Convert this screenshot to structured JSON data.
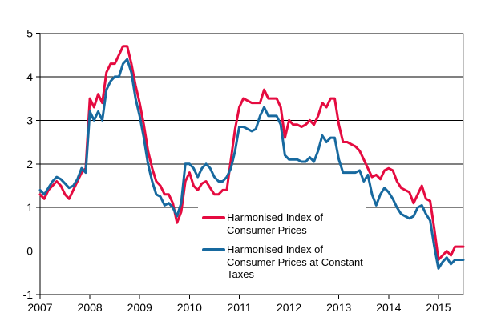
{
  "chart_data": {
    "type": "line",
    "title": "",
    "frequency": "monthly",
    "x_start": "2007-01",
    "x_end": "2015-07",
    "x_tick_labels": [
      "2007",
      "2008",
      "2009",
      "2010",
      "2011",
      "2012",
      "2013",
      "2014",
      "2015"
    ],
    "y_ticks": [
      -1,
      0,
      1,
      2,
      3,
      4,
      5
    ],
    "ylim": [
      -1,
      5
    ],
    "grid": "horizontal",
    "legend_position": "inside-bottom-center",
    "axis_color": "#000000",
    "border_color": "#808080",
    "series": [
      {
        "name": "Harmonised Index of Consumer Prices",
        "color": "#e50b40",
        "values": [
          1.3,
          1.2,
          1.4,
          1.5,
          1.6,
          1.5,
          1.3,
          1.2,
          1.4,
          1.6,
          1.8,
          1.9,
          3.5,
          3.3,
          3.6,
          3.4,
          4.1,
          4.3,
          4.3,
          4.5,
          4.7,
          4.7,
          4.3,
          3.8,
          3.4,
          2.9,
          2.3,
          1.9,
          1.6,
          1.5,
          1.3,
          1.3,
          1.1,
          0.65,
          0.9,
          1.6,
          1.8,
          1.5,
          1.4,
          1.55,
          1.6,
          1.45,
          1.3,
          1.3,
          1.4,
          1.4,
          2.1,
          2.8,
          3.3,
          3.5,
          3.45,
          3.4,
          3.4,
          3.4,
          3.7,
          3.5,
          3.5,
          3.5,
          3.3,
          2.6,
          3.0,
          2.9,
          2.9,
          2.85,
          2.9,
          3.0,
          2.9,
          3.1,
          3.4,
          3.3,
          3.5,
          3.5,
          2.9,
          2.5,
          2.5,
          2.45,
          2.4,
          2.3,
          2.1,
          1.9,
          1.7,
          1.75,
          1.65,
          1.85,
          1.9,
          1.85,
          1.6,
          1.45,
          1.4,
          1.35,
          1.1,
          1.3,
          1.5,
          1.2,
          1.15,
          0.5,
          -0.2,
          -0.1,
          0.0,
          -0.1,
          0.1,
          0.1,
          0.1
        ]
      },
      {
        "name": "Harmonised Index of Consumer Prices at Constant Taxes",
        "color": "#17699f",
        "values": [
          1.4,
          1.3,
          1.45,
          1.6,
          1.7,
          1.65,
          1.55,
          1.45,
          1.5,
          1.65,
          1.9,
          1.8,
          3.2,
          3.0,
          3.2,
          3.0,
          3.7,
          3.9,
          4.0,
          4.0,
          4.3,
          4.4,
          4.1,
          3.5,
          3.1,
          2.6,
          2.0,
          1.6,
          1.3,
          1.25,
          1.05,
          1.1,
          1.0,
          0.8,
          1.1,
          2.0,
          2.0,
          1.9,
          1.7,
          1.9,
          2.0,
          1.9,
          1.7,
          1.6,
          1.6,
          1.7,
          1.9,
          2.3,
          2.85,
          2.85,
          2.8,
          2.75,
          2.8,
          3.1,
          3.3,
          3.1,
          3.1,
          3.1,
          2.9,
          2.2,
          2.1,
          2.1,
          2.1,
          2.05,
          2.05,
          2.15,
          2.05,
          2.3,
          2.65,
          2.5,
          2.6,
          2.6,
          2.1,
          1.8,
          1.8,
          1.8,
          1.8,
          1.85,
          1.6,
          1.75,
          1.3,
          1.05,
          1.3,
          1.45,
          1.35,
          1.2,
          1.0,
          0.85,
          0.8,
          0.75,
          0.8,
          1.0,
          1.05,
          0.85,
          0.7,
          0.1,
          -0.4,
          -0.25,
          -0.15,
          -0.3,
          -0.2,
          -0.2,
          -0.2
        ]
      }
    ]
  },
  "legend": {
    "items": [
      {
        "label": "Harmonised Index of Consumer Prices"
      },
      {
        "label": "Harmonised Index of Consumer Prices at Constant Taxes"
      }
    ]
  }
}
